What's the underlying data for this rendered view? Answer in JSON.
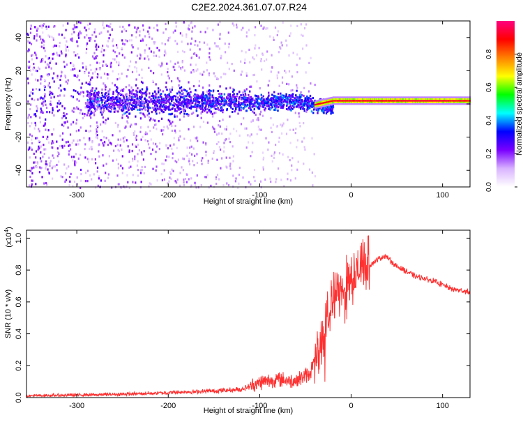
{
  "title": "C2E2.2024.361.07.07.R24",
  "chart_data": [
    {
      "type": "heatmap",
      "xlabel": "Height of straight line (km)",
      "ylabel": "Frequency (Hz)",
      "xlim": [
        -355,
        130
      ],
      "ylim": [
        -50,
        50
      ],
      "x_ticks": [
        -300,
        -200,
        -100,
        0,
        100
      ],
      "y_ticks": [
        -40,
        -20,
        0,
        20,
        40
      ],
      "colorbar": {
        "label": "Normalized spectral amplitude",
        "range": [
          0,
          1
        ],
        "ticks": [
          "0.0",
          "0.2",
          "0.4",
          "0.6",
          "0.8"
        ],
        "colormap": [
          "#ffffff",
          "#d9b3ff",
          "#7a00ff",
          "#0000ff",
          "#00ffff",
          "#00ff00",
          "#ffff00",
          "#ff8000",
          "#ff0000",
          "#ff0080"
        ]
      },
      "features": {
        "noise_region_x": [
          -355,
          -40
        ],
        "band_center_hz": 2,
        "band_width_hz": 4,
        "strong_band_x": [
          -40,
          130
        ]
      }
    },
    {
      "type": "line",
      "xlabel": "Height of straight line (km)",
      "ylabel": "SNR (10 * v/v)",
      "y_multiplier": "(x10",
      "y_multiplier_exp": "4",
      "y_multiplier_close": ")",
      "xlim": [
        -355,
        130
      ],
      "ylim": [
        0,
        1.05
      ],
      "x_ticks": [
        -300,
        -200,
        -100,
        0,
        100
      ],
      "y_ticks": [
        "0.0",
        "0.2",
        "0.4",
        "0.6",
        "0.8",
        "1.0"
      ],
      "series_color": "#ff3030",
      "series_envelope": [
        {
          "x": -355,
          "y": 0.01
        },
        {
          "x": -300,
          "y": 0.015
        },
        {
          "x": -250,
          "y": 0.02
        },
        {
          "x": -200,
          "y": 0.03
        },
        {
          "x": -150,
          "y": 0.04
        },
        {
          "x": -120,
          "y": 0.05
        },
        {
          "x": -100,
          "y": 0.09
        },
        {
          "x": -80,
          "y": 0.11
        },
        {
          "x": -60,
          "y": 0.1
        },
        {
          "x": -45,
          "y": 0.15
        },
        {
          "x": -35,
          "y": 0.3
        },
        {
          "x": -25,
          "y": 0.5
        },
        {
          "x": -15,
          "y": 0.62
        },
        {
          "x": -5,
          "y": 0.7
        },
        {
          "x": 10,
          "y": 0.78
        },
        {
          "x": 25,
          "y": 0.85
        },
        {
          "x": 37,
          "y": 0.89
        },
        {
          "x": 50,
          "y": 0.82
        },
        {
          "x": 70,
          "y": 0.76
        },
        {
          "x": 90,
          "y": 0.73
        },
        {
          "x": 110,
          "y": 0.68
        },
        {
          "x": 130,
          "y": 0.66
        }
      ]
    }
  ]
}
